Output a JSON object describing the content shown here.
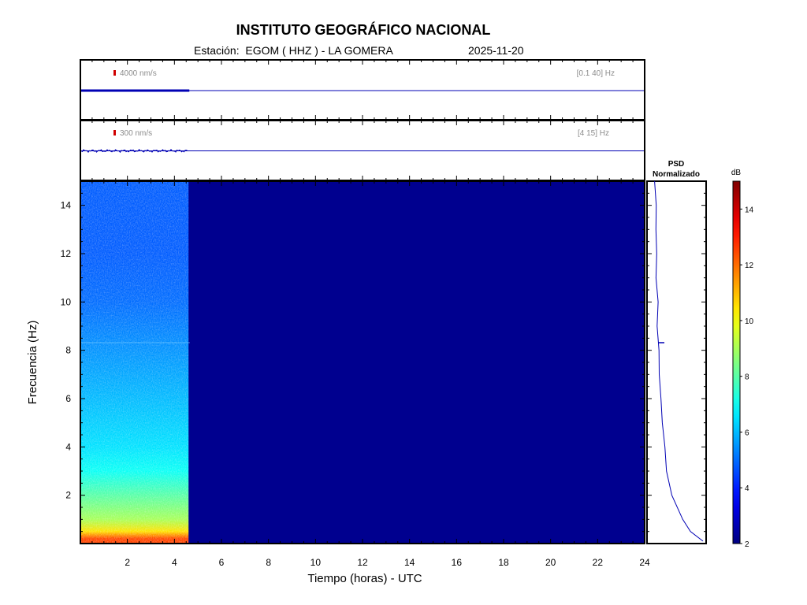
{
  "header": {
    "title": "INSTITUTO GEOGRÁFICO NACIONAL",
    "station_label": "Estación:",
    "station": "EGOM ( HHZ ) - LA GOMERA",
    "date": "2025-11-20"
  },
  "colors": {
    "frame": "#000000",
    "trace": "#0000b4",
    "spectrogram_background": "#00008f",
    "scale_bar": "#d00000",
    "annotation": "#8c8c8c"
  },
  "chart_data": [
    {
      "type": "line",
      "name": "trace-broadband",
      "scale_label": "4000 nm/s",
      "filter_label": "[0.1 40] Hz",
      "x_range": [
        0,
        24
      ],
      "data_until_hour": 4.6,
      "amplitude_relative": 0.02
    },
    {
      "type": "line",
      "name": "trace-filtered",
      "scale_label": "300 nm/s",
      "filter_label": "[4 15] Hz",
      "x_range": [
        0,
        24
      ],
      "data_until_hour": 4.6,
      "amplitude_relative": 0.05
    },
    {
      "type": "heatmap",
      "name": "spectrogram",
      "xlabel": "Tiempo (horas) - UTC",
      "ylabel": "Frecuencia  (Hz)",
      "xlim": [
        0,
        24
      ],
      "ylim": [
        0,
        15
      ],
      "x_ticks": [
        "2",
        "4",
        "6",
        "8",
        "10",
        "12",
        "14",
        "16",
        "18",
        "20",
        "22",
        "24"
      ],
      "y_ticks": [
        "2",
        "4",
        "6",
        "8",
        "10",
        "12",
        "14"
      ],
      "data_until_hour": 4.6,
      "db_profile": [
        {
          "freq": 0.2,
          "db": 12.5
        },
        {
          "freq": 0.5,
          "db": 10.5
        },
        {
          "freq": 1.0,
          "db": 9.0
        },
        {
          "freq": 2.0,
          "db": 8.0
        },
        {
          "freq": 3.0,
          "db": 7.0
        },
        {
          "freq": 4.0,
          "db": 6.5
        },
        {
          "freq": 6.0,
          "db": 6.0
        },
        {
          "freq": 8.0,
          "db": 5.5
        },
        {
          "freq": 10.0,
          "db": 5.0
        },
        {
          "freq": 12.0,
          "db": 4.8
        },
        {
          "freq": 15.0,
          "db": 4.8
        }
      ],
      "empty_db": 2
    },
    {
      "type": "line",
      "name": "psd-normalized",
      "title_line1": "PSD",
      "title_line2": "Normalizado",
      "orientation": "vertical",
      "points": [
        {
          "freq": 0.1,
          "value": 1.0
        },
        {
          "freq": 0.5,
          "value": 0.75
        },
        {
          "freq": 1.0,
          "value": 0.6
        },
        {
          "freq": 2.0,
          "value": 0.38
        },
        {
          "freq": 3.0,
          "value": 0.28
        },
        {
          "freq": 4.0,
          "value": 0.24
        },
        {
          "freq": 5.0,
          "value": 0.2
        },
        {
          "freq": 6.0,
          "value": 0.16
        },
        {
          "freq": 7.0,
          "value": 0.14
        },
        {
          "freq": 8.0,
          "value": 0.12
        },
        {
          "freq": 9.0,
          "value": 0.1
        },
        {
          "freq": 10.0,
          "value": 0.1
        },
        {
          "freq": 11.0,
          "value": 0.08
        },
        {
          "freq": 12.0,
          "value": 0.07
        },
        {
          "freq": 13.0,
          "value": 0.08
        },
        {
          "freq": 14.0,
          "value": 0.06
        },
        {
          "freq": 15.0,
          "value": 0.04
        }
      ]
    },
    {
      "type": "heatmap",
      "name": "colorbar",
      "label": "dB",
      "range": [
        2,
        15
      ],
      "ticks": [
        "2",
        "4",
        "6",
        "8",
        "10",
        "12",
        "14"
      ]
    }
  ]
}
